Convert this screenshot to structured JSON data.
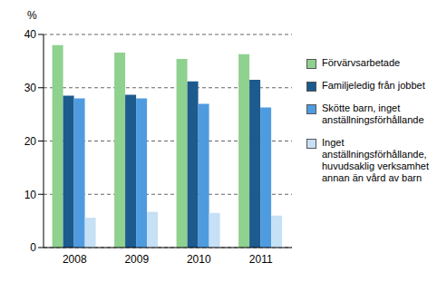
{
  "chart_data": {
    "type": "bar",
    "y_label": "%",
    "categories": [
      "2008",
      "2009",
      "2010",
      "2011"
    ],
    "series": [
      {
        "name": "Förvärvsarbetade",
        "color": "#8fd18f",
        "values": [
          38,
          36.6,
          35.4,
          36.3
        ]
      },
      {
        "name": "Familjeledig från jobbet",
        "color": "#1d5a8e",
        "values": [
          28.5,
          28.7,
          31.2,
          31.5
        ]
      },
      {
        "name": "Skötte barn, inget anställningsförhållande",
        "color": "#4f9be0",
        "values": [
          28,
          28,
          27,
          26.3
        ]
      },
      {
        "name": "Inget anställningsförhållande, huvudsaklig verksamhet annan än vård av barn",
        "color": "#c6e0f5",
        "values": [
          5.6,
          6.7,
          6.5,
          6.0
        ]
      }
    ],
    "ylim": [
      0,
      40
    ],
    "yticks": [
      0,
      10,
      20,
      30,
      40
    ],
    "grid": true,
    "legend": "right"
  }
}
